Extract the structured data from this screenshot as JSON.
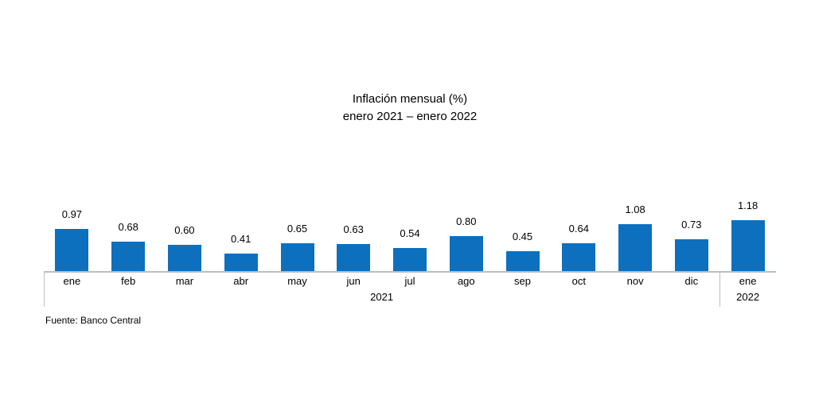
{
  "source": "Fuente: Banco Central",
  "chart_data": {
    "type": "bar",
    "title": "Inflación mensual (%)",
    "subtitle": "enero 2021 – enero 2022",
    "categories": [
      "ene",
      "feb",
      "mar",
      "abr",
      "may",
      "jun",
      "jul",
      "ago",
      "sep",
      "oct",
      "nov",
      "dic",
      "ene"
    ],
    "values": [
      0.97,
      0.68,
      0.6,
      0.41,
      0.65,
      0.63,
      0.54,
      0.8,
      0.45,
      0.64,
      1.08,
      0.73,
      1.18
    ],
    "value_labels": [
      "0.97",
      "0.68",
      "0.60",
      "0.41",
      "0.65",
      "0.63",
      "0.54",
      "0.80",
      "0.45",
      "0.64",
      "1.08",
      "0.73",
      "1.18"
    ],
    "year_groups": [
      {
        "label": "2021",
        "span": [
          0,
          11
        ]
      },
      {
        "label": "2022",
        "span": [
          12,
          12
        ]
      }
    ],
    "xlabel": "",
    "ylabel": "",
    "ylim": [
      0,
      1.3
    ],
    "grid": false,
    "legend": "none",
    "data_labels": true,
    "bar_color": "#0D70BE",
    "axis_color": "#BDBDBD",
    "text_color": "#000000"
  }
}
